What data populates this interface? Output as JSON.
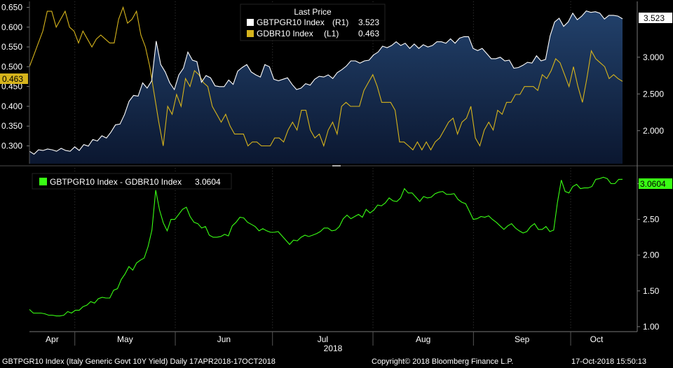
{
  "colors": {
    "white_series": "#ffffff",
    "yellow_series": "#d6b41c",
    "green_series": "#39ff14",
    "area_top": "#1f3d66",
    "area_bottom": "#0c1a33",
    "grid": "#3a3a3a",
    "axis_text": "#ffffff"
  },
  "chart_data": [
    {
      "type": "line",
      "panel": "top",
      "legend_title": "Last Price",
      "legend_placement": "top-center",
      "series": [
        {
          "name": "GBTPGR10 Index",
          "axis_tag": "(R1)",
          "last": "3.523",
          "axis": "right",
          "style": "area-line",
          "values": [
            1.72,
            1.68,
            1.74,
            1.73,
            1.75,
            1.74,
            1.72,
            1.76,
            1.73,
            1.72,
            1.78,
            1.73,
            1.81,
            1.79,
            1.88,
            1.86,
            1.93,
            1.9,
            1.98,
            2.08,
            2.09,
            2.22,
            2.4,
            2.48,
            2.47,
            2.65,
            2.58,
            2.68,
            3.22,
            2.9,
            2.8,
            2.65,
            2.56,
            2.76,
            2.85,
            3.07,
            2.96,
            2.94,
            2.66,
            2.75,
            2.72,
            2.61,
            2.6,
            2.6,
            2.69,
            2.63,
            2.81,
            2.86,
            2.9,
            2.8,
            2.76,
            2.73,
            2.9,
            2.87,
            2.7,
            2.68,
            2.7,
            2.72,
            2.63,
            2.56,
            2.58,
            2.64,
            2.62,
            2.7,
            2.74,
            2.73,
            2.76,
            2.71,
            2.79,
            2.83,
            2.88,
            2.95,
            2.95,
            2.92,
            2.95,
            2.96,
            3.03,
            3.07,
            3.15,
            3.13,
            3.16,
            3.21,
            3.16,
            3.19,
            3.12,
            3.18,
            3.12,
            3.17,
            3.14,
            3.16,
            3.21,
            3.21,
            3.19,
            3.25,
            3.19,
            3.26,
            3.28,
            3.28,
            3.12,
            3.09,
            3.12,
            3.05,
            2.98,
            2.98,
            3.0,
            2.95,
            2.96,
            2.85,
            2.86,
            2.89,
            2.93,
            2.92,
            3.02,
            2.95,
            2.97,
            3.29,
            3.48,
            3.53,
            3.42,
            3.48,
            3.6,
            3.51,
            3.56,
            3.63,
            3.61,
            3.62,
            3.6,
            3.52,
            3.57,
            3.57,
            3.56,
            3.523
          ]
        },
        {
          "name": "GDBR10 Index",
          "axis_tag": "(L1)",
          "last": "0.463",
          "axis": "left",
          "style": "line",
          "values": [
            0.5,
            0.53,
            0.56,
            0.59,
            0.64,
            0.64,
            0.6,
            0.62,
            0.64,
            0.6,
            0.59,
            0.56,
            0.59,
            0.57,
            0.55,
            0.57,
            0.58,
            0.57,
            0.56,
            0.56,
            0.62,
            0.65,
            0.61,
            0.62,
            0.64,
            0.58,
            0.55,
            0.5,
            0.43,
            0.36,
            0.3,
            0.4,
            0.38,
            0.43,
            0.4,
            0.47,
            0.45,
            0.49,
            0.48,
            0.46,
            0.45,
            0.4,
            0.38,
            0.36,
            0.38,
            0.35,
            0.33,
            0.33,
            0.33,
            0.3,
            0.31,
            0.31,
            0.3,
            0.3,
            0.3,
            0.32,
            0.32,
            0.31,
            0.34,
            0.36,
            0.34,
            0.39,
            0.39,
            0.34,
            0.32,
            0.33,
            0.3,
            0.34,
            0.36,
            0.33,
            0.4,
            0.41,
            0.4,
            0.4,
            0.4,
            0.44,
            0.46,
            0.48,
            0.45,
            0.41,
            0.41,
            0.41,
            0.39,
            0.31,
            0.31,
            0.3,
            0.29,
            0.31,
            0.29,
            0.31,
            0.29,
            0.31,
            0.32,
            0.34,
            0.36,
            0.37,
            0.33,
            0.36,
            0.37,
            0.4,
            0.32,
            0.3,
            0.34,
            0.36,
            0.34,
            0.39,
            0.38,
            0.41,
            0.41,
            0.43,
            0.43,
            0.45,
            0.45,
            0.45,
            0.44,
            0.48,
            0.47,
            0.49,
            0.52,
            0.51,
            0.48,
            0.45,
            0.5,
            0.45,
            0.41,
            0.47,
            0.54,
            0.52,
            0.51,
            0.5,
            0.47,
            0.48,
            0.47,
            0.463
          ]
        }
      ],
      "left_axis": {
        "ylim": [
          0.255,
          0.665
        ],
        "ticks": [
          "0.300",
          "0.350",
          "0.400",
          "0.450",
          "0.500",
          "0.550",
          "0.600",
          "0.650"
        ]
      },
      "right_axis": {
        "ylim": [
          1.55,
          3.76
        ],
        "ticks": [
          "2.000",
          "2.500",
          "3.000"
        ]
      }
    },
    {
      "type": "line",
      "panel": "bottom",
      "legend_placement": "top-left",
      "series": [
        {
          "name": "GBTPGR10 Index - GDBR10 Index",
          "last": "3.0604",
          "axis": "right",
          "values": [
            1.24,
            1.19,
            1.19,
            1.19,
            1.18,
            1.16,
            1.16,
            1.15,
            1.15,
            1.16,
            1.21,
            1.19,
            1.23,
            1.23,
            1.28,
            1.3,
            1.35,
            1.33,
            1.39,
            1.41,
            1.4,
            1.4,
            1.51,
            1.53,
            1.66,
            1.74,
            1.84,
            1.79,
            1.89,
            1.93,
            1.96,
            2.12,
            2.35,
            2.91,
            2.63,
            2.45,
            2.34,
            2.5,
            2.5,
            2.57,
            2.64,
            2.67,
            2.54,
            2.46,
            2.44,
            2.38,
            2.4,
            2.28,
            2.25,
            2.25,
            2.26,
            2.29,
            2.27,
            2.41,
            2.46,
            2.53,
            2.52,
            2.46,
            2.43,
            2.4,
            2.34,
            2.37,
            2.34,
            2.32,
            2.32,
            2.33,
            2.27,
            2.21,
            2.15,
            2.21,
            2.2,
            2.25,
            2.28,
            2.26,
            2.28,
            2.3,
            2.33,
            2.38,
            2.38,
            2.34,
            2.35,
            2.4,
            2.51,
            2.56,
            2.51,
            2.54,
            2.57,
            2.53,
            2.64,
            2.59,
            2.63,
            2.7,
            2.69,
            2.73,
            2.8,
            2.76,
            2.75,
            2.8,
            2.93,
            2.87,
            2.87,
            2.81,
            2.75,
            2.82,
            2.8,
            2.81,
            2.86,
            2.88,
            2.89,
            2.85,
            2.85,
            2.86,
            2.78,
            2.74,
            2.72,
            2.61,
            2.5,
            2.51,
            2.54,
            2.53,
            2.55,
            2.5,
            2.46,
            2.41,
            2.36,
            2.41,
            2.44,
            2.38,
            2.34,
            2.31,
            2.33,
            2.4,
            2.44,
            2.36,
            2.36,
            2.4,
            2.33,
            2.35,
            2.74,
            3.05,
            2.89,
            2.87,
            2.96,
            2.99,
            2.93,
            2.94,
            2.94,
            2.96,
            3.06,
            3.07,
            3.09,
            3.07,
            3.0,
            3.0,
            3.06,
            3.0604
          ]
        }
      ],
      "right_axis": {
        "ylim": [
          0.95,
          3.22
        ],
        "ticks": [
          "1.00",
          "1.50",
          "2.00",
          "2.50",
          "3.00"
        ]
      }
    }
  ],
  "x_axis": {
    "months": [
      "Apr",
      "May",
      "Jun",
      "Jul",
      "Aug",
      "Sep",
      "Oct"
    ],
    "year": "2018"
  },
  "footer": {
    "left": "GBTPGR10 Index (Italy Generic Govt 10Y Yield)  Daily 17APR2018-17OCT2018",
    "center": "Copyright© 2018 Bloomberg Finance L.P.",
    "right": "17-Oct-2018 15:50:13"
  }
}
